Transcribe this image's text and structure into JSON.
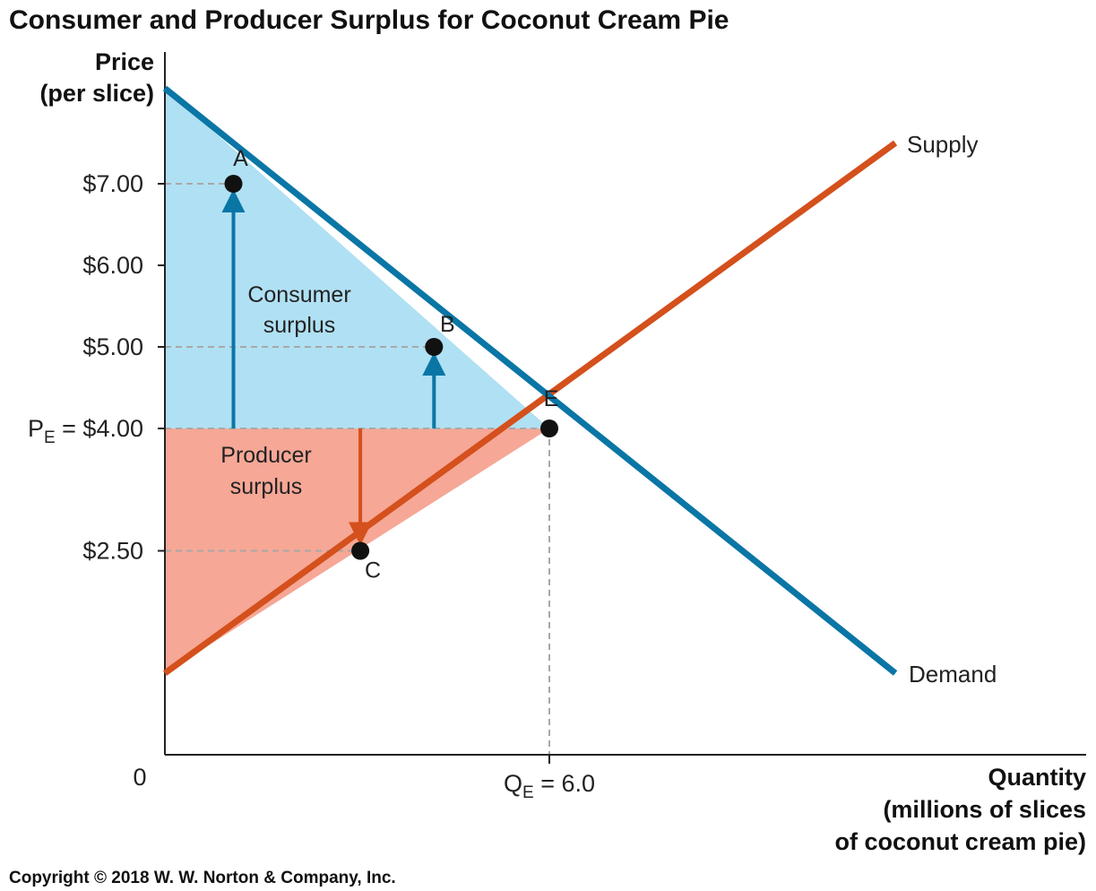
{
  "chart_data": {
    "type": "line",
    "title": "Consumer and Producer Surplus for Coconut Cream Pie",
    "ylabel": [
      "Price",
      "(per slice)"
    ],
    "xlabel": [
      "Quantity",
      "(millions of slices",
      "of coconut cream pie)"
    ],
    "origin_label": "0",
    "ylim": [
      0,
      8.17
    ],
    "xlim": [
      0,
      13
    ],
    "y_ticks": [
      {
        "value": 7.0,
        "label": "$7.00"
      },
      {
        "value": 6.0,
        "label": "$6.00"
      },
      {
        "value": 5.0,
        "label": "$5.00"
      },
      {
        "value": 4.0,
        "label": "P",
        "sub": "E",
        "suffix": " = $4.00"
      },
      {
        "value": 2.5,
        "label": "$2.50"
      }
    ],
    "x_ticks": [
      {
        "value": 6.0,
        "label": "Q",
        "sub": "E",
        "suffix": " = 6.0"
      }
    ],
    "series": [
      {
        "name": "Supply",
        "color": "#d4501c",
        "points": [
          [
            0,
            1.0
          ],
          [
            11.4,
            7.5
          ]
        ]
      },
      {
        "name": "Demand",
        "color": "#0a76a6",
        "points": [
          [
            0,
            8.17
          ],
          [
            11.4,
            1.0
          ]
        ]
      }
    ],
    "equilibrium": {
      "label": "E",
      "q": 6.0,
      "p": 4.0
    },
    "points": [
      {
        "label": "A",
        "q": 1.07,
        "p": 7.0
      },
      {
        "label": "B",
        "q": 4.2,
        "p": 5.0
      },
      {
        "label": "C",
        "q": 3.05,
        "p": 2.5
      }
    ],
    "regions": [
      {
        "name": "Consumer surplus",
        "lines": [
          "Consumer",
          "surplus"
        ],
        "color": "#b0e0f3"
      },
      {
        "name": "Producer surplus",
        "lines": [
          "Producer",
          "surplus"
        ],
        "color": "#f6a796"
      }
    ],
    "copyright": "Copyright © 2018 W. W. Norton & Company, Inc."
  }
}
